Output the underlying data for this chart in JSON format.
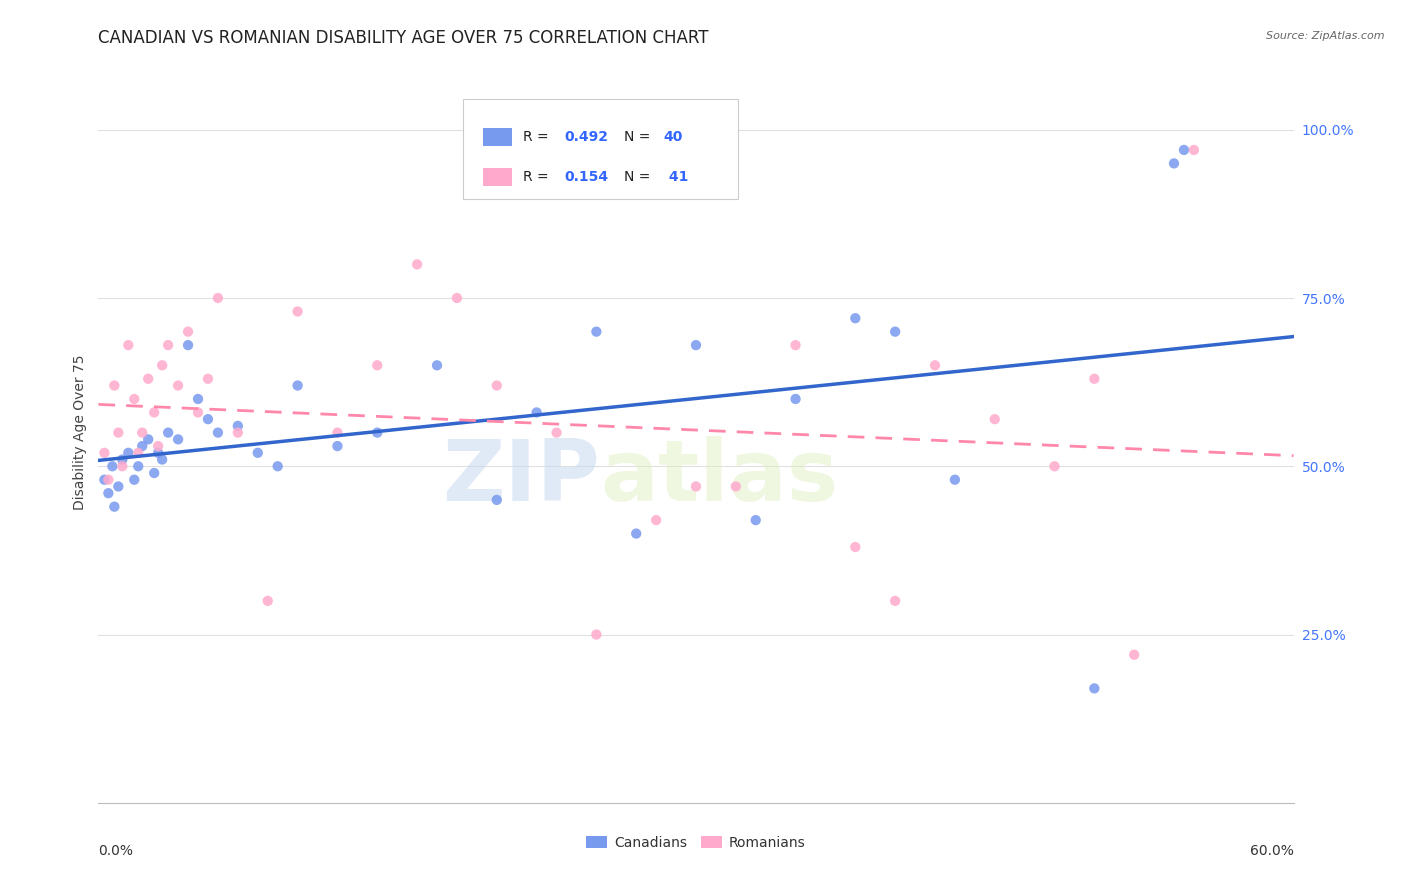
{
  "title": "CANADIAN VS ROMANIAN DISABILITY AGE OVER 75 CORRELATION CHART",
  "source": "Source: ZipAtlas.com",
  "ylabel": "Disability Age Over 75",
  "canadian_color": "#7799ee",
  "romanian_color": "#ffaacc",
  "canadian_line_color": "#3366cc",
  "romanian_line_color": "#ff88aa",
  "watermark_zip": "ZIP",
  "watermark_atlas": "atlas",
  "background_color": "#ffffff",
  "grid_color": "#e0e0e0",
  "title_fontsize": 12,
  "axis_label_fontsize": 10,
  "tick_fontsize": 10,
  "xlim": [
    0,
    60
  ],
  "ylim": [
    0,
    110
  ],
  "canadians_x": [
    0.3,
    0.5,
    0.7,
    0.8,
    1.0,
    1.2,
    1.5,
    1.8,
    2.0,
    2.2,
    2.5,
    2.8,
    3.0,
    3.2,
    3.5,
    4.0,
    4.5,
    5.0,
    5.5,
    6.0,
    7.0,
    8.0,
    9.0,
    10.0,
    12.0,
    14.0,
    17.0,
    20.0,
    22.0,
    25.0,
    27.0,
    30.0,
    33.0,
    35.0,
    38.0,
    40.0,
    43.0,
    50.0,
    54.0,
    54.5
  ],
  "canadians_y": [
    48,
    46,
    50,
    44,
    47,
    51,
    52,
    48,
    50,
    53,
    54,
    49,
    52,
    51,
    55,
    54,
    68,
    60,
    57,
    55,
    56,
    52,
    50,
    62,
    53,
    55,
    65,
    45,
    58,
    70,
    40,
    68,
    42,
    60,
    72,
    70,
    48,
    17,
    95,
    97
  ],
  "romanians_x": [
    0.3,
    0.5,
    0.8,
    1.0,
    1.2,
    1.5,
    1.8,
    2.0,
    2.2,
    2.5,
    2.8,
    3.0,
    3.2,
    3.5,
    4.0,
    4.5,
    5.0,
    5.5,
    6.0,
    7.0,
    8.5,
    10.0,
    12.0,
    14.0,
    16.0,
    18.0,
    20.0,
    23.0,
    25.0,
    28.0,
    30.0,
    32.0,
    35.0,
    38.0,
    40.0,
    42.0,
    45.0,
    48.0,
    50.0,
    52.0,
    55.0
  ],
  "romanians_y": [
    52,
    48,
    62,
    55,
    50,
    68,
    60,
    52,
    55,
    63,
    58,
    53,
    65,
    68,
    62,
    70,
    58,
    63,
    75,
    55,
    30,
    73,
    55,
    65,
    80,
    75,
    62,
    55,
    25,
    42,
    47,
    47,
    68,
    38,
    30,
    65,
    57,
    50,
    63,
    22,
    97
  ],
  "right_yticks": [
    25,
    50,
    75,
    100
  ],
  "right_ytick_labels": [
    "25.0%",
    "50.0%",
    "75.0%",
    "100.0%"
  ]
}
